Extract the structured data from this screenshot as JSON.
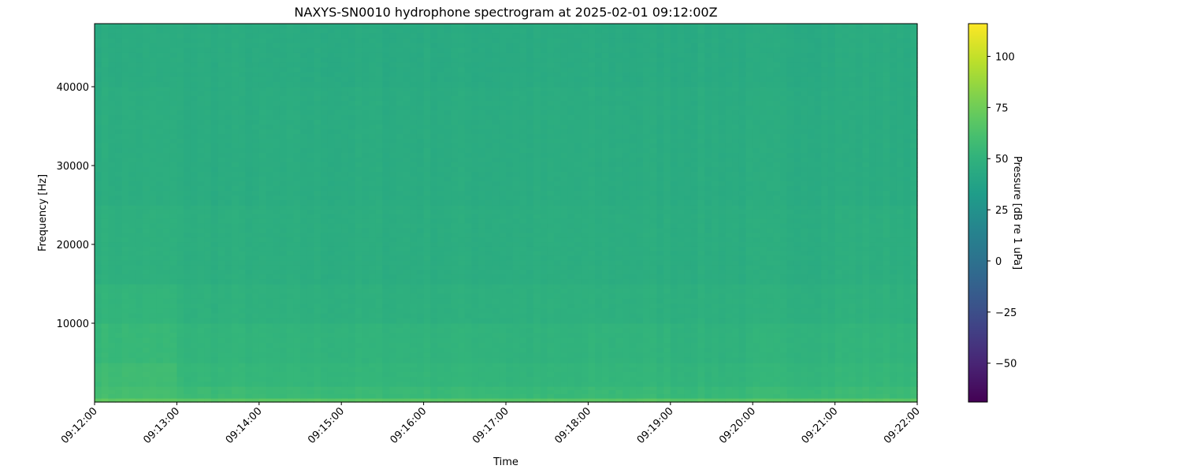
{
  "chart_data": {
    "type": "heatmap",
    "title": "NAXYS-SN0010 hydrophone spectrogram at 2025-02-01 09:12:00Z",
    "xlabel": "Time",
    "ylabel": "Frequency [Hz]",
    "colorbar_label": "Pressure [dB re 1 uPa]",
    "colormap": "viridis",
    "clim": [
      -69,
      116
    ],
    "xlim": [
      "09:12:00",
      "09:22:00"
    ],
    "ylim": [
      0,
      48000
    ],
    "x_ticks": [
      "09:12:00",
      "09:13:00",
      "09:14:00",
      "09:15:00",
      "09:16:00",
      "09:17:00",
      "09:18:00",
      "09:19:00",
      "09:20:00",
      "09:21:00",
      "09:22:00"
    ],
    "y_ticks": [
      10000,
      20000,
      30000,
      40000
    ],
    "y_tick_labels": [
      "10000",
      "20000",
      "30000",
      "40000"
    ],
    "colorbar_ticks": [
      -50,
      -25,
      0,
      25,
      50,
      75,
      100
    ],
    "colorbar_tick_labels": [
      "−50",
      "−25",
      "0",
      "25",
      "50",
      "75",
      "100"
    ],
    "z_time_minutes": [
      "09:12",
      "09:13",
      "09:14",
      "09:15",
      "09:16",
      "09:17",
      "09:18",
      "09:19",
      "09:20",
      "09:21"
    ],
    "z_freq_bands_hz": [
      [
        0,
        500
      ],
      [
        500,
        2000
      ],
      [
        2000,
        5000
      ],
      [
        5000,
        10000
      ],
      [
        10000,
        15000
      ],
      [
        15000,
        25000
      ],
      [
        25000,
        40000
      ],
      [
        40000,
        48000
      ]
    ],
    "z_db_approx": [
      [
        70,
        68,
        68,
        68,
        68,
        67,
        68,
        67,
        68,
        69
      ],
      [
        60,
        57,
        56,
        56,
        56,
        55,
        56,
        55,
        56,
        57
      ],
      [
        58,
        54,
        53,
        53,
        53,
        52,
        53,
        52,
        53,
        54
      ],
      [
        55,
        52,
        51,
        51,
        51,
        50,
        51,
        50,
        51,
        52
      ],
      [
        52,
        49,
        48,
        48,
        48,
        48,
        48,
        48,
        48,
        49
      ],
      [
        48,
        47,
        46,
        46,
        46,
        46,
        46,
        46,
        46,
        47
      ],
      [
        46,
        45,
        45,
        45,
        45,
        45,
        45,
        45,
        45,
        45
      ],
      [
        45,
        45,
        44,
        44,
        44,
        44,
        44,
        44,
        44,
        45
      ]
    ],
    "grid": false
  }
}
